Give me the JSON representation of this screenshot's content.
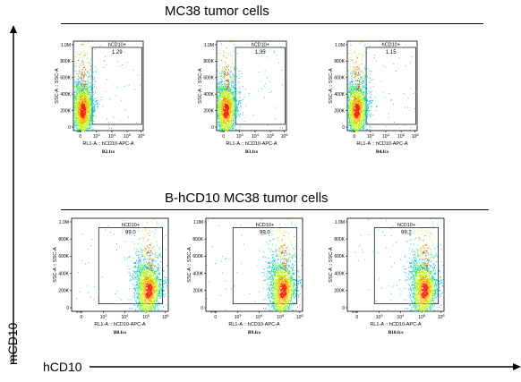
{
  "group_titles": [
    "MC38 tumor cells",
    "B-hCD10 MC38 tumor cells"
  ],
  "axis_labels": {
    "x": "hCD10",
    "y": "mCD10"
  },
  "plot_text": {
    "x_label": "RL1-A :: hCD10-APC-A",
    "y_label": "SSC-A :: SSC-A",
    "gate_name": "hCD10+"
  },
  "chart_data": [
    {
      "type": "scatter",
      "file": "B2.fcs",
      "gate_percent": "1.29",
      "population": "negative",
      "x_ticks": [
        "0",
        "10^3",
        "10^4",
        "10^5",
        "10^6"
      ],
      "y_ticks": [
        "0",
        "200K",
        "400K",
        "600K",
        "800K",
        "1.0M"
      ]
    },
    {
      "type": "scatter",
      "file": "B3.fcs",
      "gate_percent": "1.35",
      "population": "negative",
      "x_ticks": [
        "0",
        "10^3",
        "10^4",
        "10^5",
        "10^6"
      ],
      "y_ticks": [
        "0",
        "200K",
        "400K",
        "600K",
        "800K",
        "1.0M"
      ]
    },
    {
      "type": "scatter",
      "file": "B4.fcs",
      "gate_percent": "1.15",
      "population": "negative",
      "x_ticks": [
        "0",
        "10^3",
        "10^4",
        "10^5",
        "10^6"
      ],
      "y_ticks": [
        "0",
        "200K",
        "400K",
        "600K",
        "800K",
        "1.0M"
      ]
    },
    {
      "type": "scatter",
      "file": "B8.fcs",
      "gate_percent": "99.0",
      "population": "positive",
      "x_ticks": [
        "0",
        "10^3",
        "10^4",
        "10^5",
        "10^6"
      ],
      "y_ticks": [
        "0",
        "200K",
        "400K",
        "600K",
        "800K",
        "1.0M"
      ]
    },
    {
      "type": "scatter",
      "file": "B9.fcs",
      "gate_percent": "99.0",
      "population": "positive",
      "x_ticks": [
        "0",
        "10^3",
        "10^4",
        "10^5",
        "10^6"
      ],
      "y_ticks": [
        "0",
        "200K",
        "400K",
        "600K",
        "800K",
        "1.0M"
      ]
    },
    {
      "type": "scatter",
      "file": "B10.fcs",
      "gate_percent": "99.2",
      "population": "positive",
      "x_ticks": [
        "0",
        "10^3",
        "10^4",
        "10^5",
        "10^6"
      ],
      "y_ticks": [
        "0",
        "200K",
        "400K",
        "600K",
        "800K",
        "1.0M"
      ]
    }
  ]
}
